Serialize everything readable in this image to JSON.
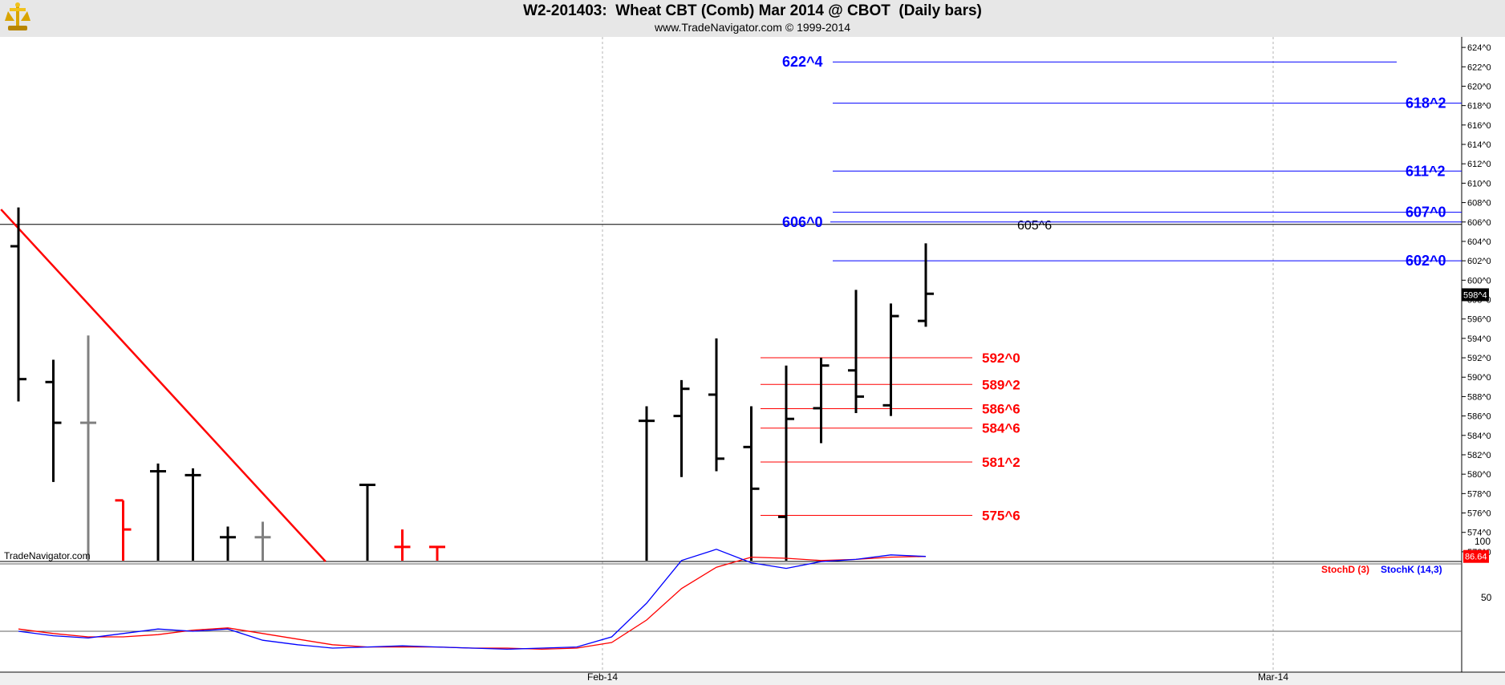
{
  "header": {
    "title": "W2-201403:  Wheat CBT (Comb) Mar 2014 @ CBOT  (Daily bars)",
    "subtitle": "www.TradeNavigator.com © 1999-2014",
    "watermark": "TradeNavigator.com"
  },
  "colors": {
    "background": "#ffffff",
    "titlebar": "#e7e7e7",
    "bars": "#000000",
    "bars_gray": "#808080",
    "bars_red": "#ff0000",
    "resistance": "#0000ff",
    "support": "#ff0000",
    "trendline": "#ff0000",
    "stochK": "#0000ff",
    "stochD": "#ff0000",
    "grid": "#b4b4b4"
  },
  "chart_data": {
    "type": "ohlc",
    "ylim": [
      571,
      625
    ],
    "y_ticks": [
      "572^0",
      "574^0",
      "576^0",
      "578^0",
      "580^0",
      "582^0",
      "584^0",
      "586^0",
      "588^0",
      "590^0",
      "592^0",
      "594^0",
      "596^0",
      "598^0",
      "600^0",
      "602^0",
      "604^0",
      "606^0",
      "608^0",
      "610^0",
      "612^0",
      "614^0",
      "616^0",
      "618^0",
      "620^0",
      "622^0",
      "624^0"
    ],
    "x_tick_labels": [
      "Feb-14",
      "Mar-14"
    ],
    "last_price_label": "598^4",
    "bars": [
      {
        "i": 0,
        "high": 607.5,
        "low": 587.5,
        "open": 603.5,
        "close": 589.8,
        "color": "black"
      },
      {
        "i": 1,
        "high": 591.8,
        "low": 579.2,
        "open": 589.5,
        "close": 585.3,
        "color": "black"
      },
      {
        "i": 2,
        "high": 594.3,
        "low": 571,
        "open": 585.3,
        "close": 585.3,
        "color": "gray"
      },
      {
        "i": 3,
        "high": 577.3,
        "low": 571,
        "open": 577.3,
        "close": 574.3,
        "color": "red"
      },
      {
        "i": 4,
        "high": 581.1,
        "low": 571,
        "open": 580.3,
        "close": 580.3,
        "color": "black"
      },
      {
        "i": 5,
        "high": 580.6,
        "low": 571,
        "open": 579.9,
        "close": 579.9,
        "color": "black"
      },
      {
        "i": 6,
        "high": 574.6,
        "low": 571,
        "open": 573.5,
        "close": 573.5,
        "color": "black"
      },
      {
        "i": 7,
        "high": 575.1,
        "low": 571,
        "open": 573.5,
        "close": 573.5,
        "color": "gray"
      },
      {
        "i": 10,
        "high": 578.9,
        "low": 571,
        "open": 578.9,
        "close": 578.9,
        "color": "black"
      },
      {
        "i": 11,
        "high": 574.3,
        "low": 571,
        "open": 572.5,
        "close": 572.5,
        "color": "red"
      },
      {
        "i": 12,
        "high": 572.5,
        "low": 571,
        "open": 572.5,
        "close": 572.5,
        "color": "red"
      },
      {
        "i": 18,
        "high": 587.0,
        "low": 571,
        "open": 585.5,
        "close": 585.5,
        "color": "black"
      },
      {
        "i": 19,
        "high": 589.7,
        "low": 579.7,
        "open": 586.0,
        "close": 588.8,
        "color": "black"
      },
      {
        "i": 20,
        "high": 594.0,
        "low": 580.3,
        "open": 588.2,
        "close": 581.6,
        "color": "black"
      },
      {
        "i": 21,
        "high": 587.0,
        "low": 571,
        "open": 582.8,
        "close": 578.5,
        "color": "black"
      },
      {
        "i": 22,
        "high": 591.2,
        "low": 571,
        "open": 575.6,
        "close": 585.7,
        "color": "black"
      },
      {
        "i": 23,
        "high": 592.0,
        "low": 583.2,
        "open": 586.8,
        "close": 591.2,
        "color": "black"
      },
      {
        "i": 24,
        "high": 599.0,
        "low": 586.3,
        "open": 590.7,
        "close": 588.0,
        "color": "black"
      },
      {
        "i": 25,
        "high": 597.6,
        "low": 586.0,
        "open": 587.1,
        "close": 596.3,
        "color": "black"
      },
      {
        "i": 26,
        "high": 603.8,
        "low": 595.2,
        "open": 595.8,
        "close": 598.6,
        "color": "black"
      }
    ],
    "horizontal_levels": {
      "resistance": [
        {
          "value": 622.5,
          "label": "622^4"
        },
        {
          "value": 618.25,
          "label": "618^2"
        },
        {
          "value": 611.25,
          "label": "611^2"
        },
        {
          "value": 607.0,
          "label": "607^0"
        },
        {
          "value": 606.0,
          "label": "606^0"
        },
        {
          "value": 602.0,
          "label": "602^0"
        }
      ],
      "support": [
        {
          "value": 592.0,
          "label": "592^0"
        },
        {
          "value": 589.25,
          "label": "589^2"
        },
        {
          "value": 586.75,
          "label": "586^6"
        },
        {
          "value": 584.75,
          "label": "584^6"
        },
        {
          "value": 581.25,
          "label": "581^2"
        },
        {
          "value": 575.75,
          "label": "575^6"
        }
      ],
      "reference": {
        "value": 605.75,
        "label": "605^6"
      }
    },
    "trendline": {
      "from": {
        "i": -0.5,
        "value": 607.3
      },
      "to": {
        "i": 8.8,
        "value": 571
      }
    },
    "stochastic": {
      "legend": [
        "StochD (3)",
        "StochK (14,3)"
      ],
      "y_ticks": [
        "100",
        "50"
      ],
      "last_value_label": "86.64",
      "stochK": [
        20,
        16,
        14,
        18,
        22,
        20,
        22,
        12,
        8,
        5,
        6,
        7,
        6,
        5,
        4,
        5,
        6,
        15,
        45,
        83,
        93,
        81,
        76,
        82,
        84,
        88,
        86.64
      ],
      "stochD": [
        22,
        18,
        15,
        15,
        17,
        21,
        23,
        18,
        13,
        8,
        6,
        6,
        6,
        5,
        5,
        4,
        5,
        10,
        30,
        58,
        77,
        86,
        85,
        83,
        84,
        86,
        86.64
      ]
    }
  }
}
